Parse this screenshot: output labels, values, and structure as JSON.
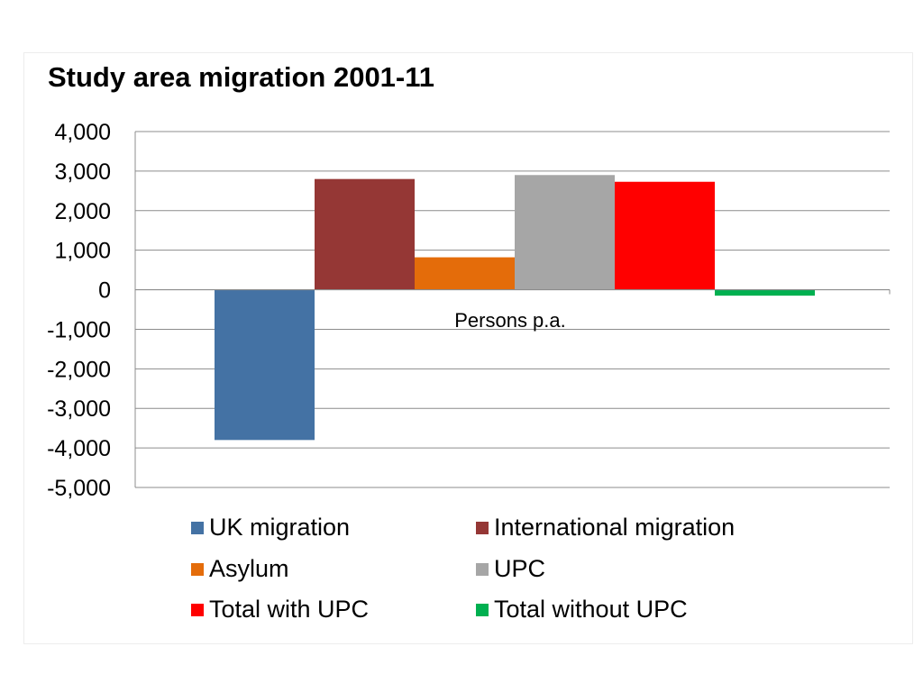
{
  "chart_data": {
    "type": "bar",
    "title": "Study area migration 2001-11",
    "xlabel": "Persons p.a.",
    "ylabel": "",
    "ylim": [
      -5000,
      4000
    ],
    "yticks": [
      4000,
      3000,
      2000,
      1000,
      0,
      -1000,
      -2000,
      -3000,
      -4000,
      -5000
    ],
    "ytick_labels": [
      "4,000",
      "3,000",
      "2,000",
      "1,000",
      "0",
      "-1,000",
      "-2,000",
      "-3,000",
      "-4,000",
      "-5,000"
    ],
    "grid": true,
    "legend_position": "bottom",
    "categories": [
      "Persons p.a."
    ],
    "series": [
      {
        "name": "UK migration",
        "values": [
          -3800
        ],
        "color": "#4472a4"
      },
      {
        "name": "International migration",
        "values": [
          2800
        ],
        "color": "#953735"
      },
      {
        "name": "Asylum",
        "values": [
          820
        ],
        "color": "#e46c0a"
      },
      {
        "name": "UPC",
        "values": [
          2900
        ],
        "color": "#a6a6a6"
      },
      {
        "name": "Total with UPC",
        "values": [
          2730
        ],
        "color": "#ff0000"
      },
      {
        "name": "Total without UPC",
        "values": [
          -150
        ],
        "color": "#00b050"
      }
    ]
  }
}
